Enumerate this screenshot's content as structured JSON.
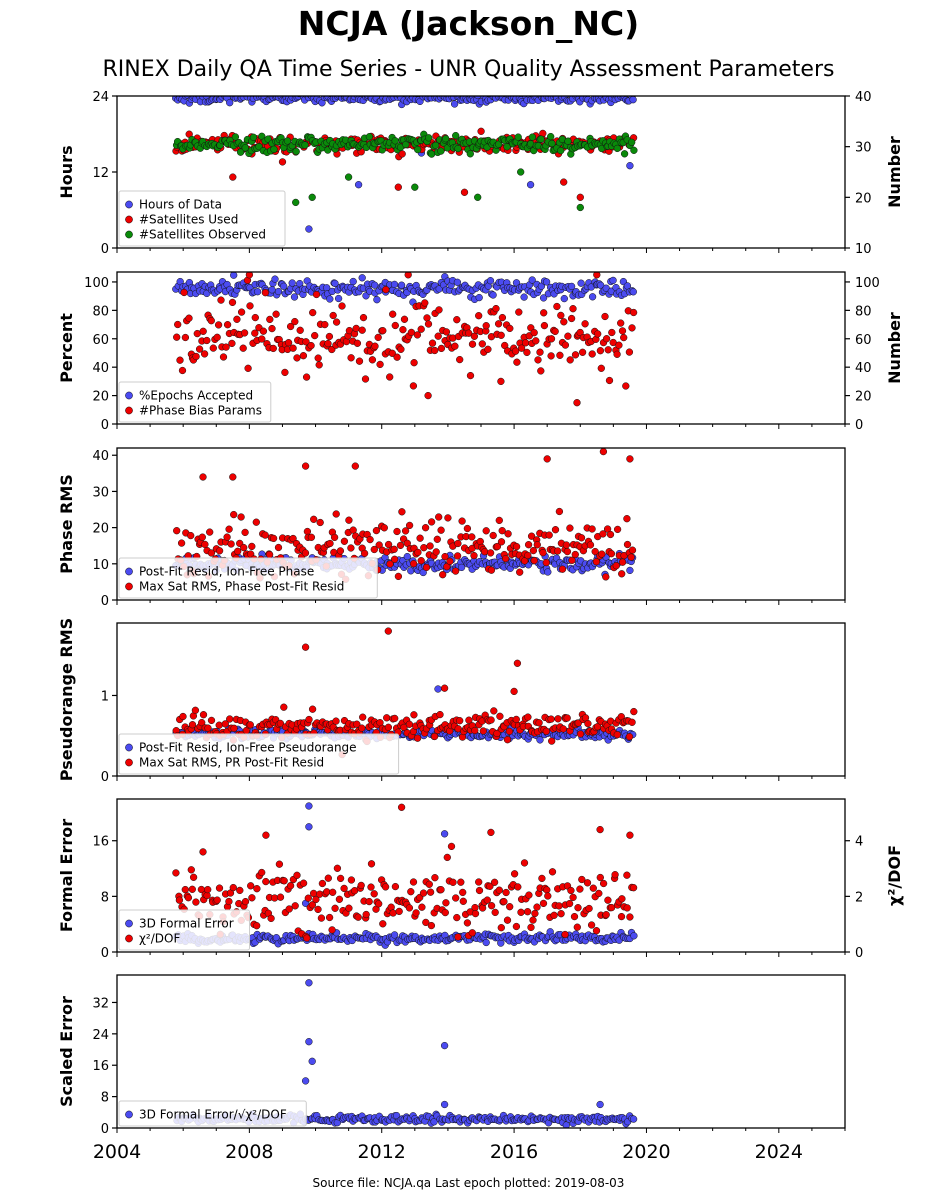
{
  "title": "NCJA (Jackson_NC)",
  "subtitle": "RINEX Daily QA Time Series - UNR Quality Assessment Parameters",
  "footer": "Source file: NCJA.qa Last epoch plotted: 2019-08-03",
  "colors": {
    "blue": "#4b4bf0",
    "red": "#ee0000",
    "green": "#0a8a0a",
    "dark": "#1a1a5a",
    "axis": "#000000"
  },
  "chart_data": [
    {
      "type": "scatter",
      "name": "panel1",
      "xlabel": "",
      "ylabel": "Hours",
      "ylabel_right": "Number",
      "xlim": [
        2004,
        2026
      ],
      "ylim": [
        0,
        24
      ],
      "ylim_right": [
        10,
        40
      ],
      "yticks": [
        0,
        12,
        24
      ],
      "yticks_right": [
        10,
        20,
        30,
        40
      ],
      "legend_loc": "lower-left",
      "series": [
        {
          "name": "Hours of Data",
          "color": "#4b4bf0",
          "axis": "left",
          "x_range": [
            2005.8,
            2019.6
          ],
          "baseline": 23.7,
          "spread": 0.4,
          "outliers": [
            [
              2009.8,
              3
            ],
            [
              2011.3,
              10
            ],
            [
              2013.2,
              15
            ],
            [
              2014.2,
              16
            ],
            [
              2016.5,
              10
            ],
            [
              2019.5,
              13
            ]
          ]
        },
        {
          "name": "#Satellites Used",
          "color": "#ee0000",
          "axis": "right",
          "x_range": [
            2005.8,
            2019.6
          ],
          "baseline": 30.5,
          "spread": 0.8,
          "outliers": [
            [
              2007.5,
              24
            ],
            [
              2009.0,
              27
            ],
            [
              2012.5,
              22
            ],
            [
              2014.5,
              21
            ],
            [
              2017.5,
              23
            ],
            [
              2018.0,
              20
            ]
          ]
        },
        {
          "name": "#Satellites Observed",
          "color": "#0a8a0a",
          "axis": "right",
          "x_range": [
            2005.8,
            2019.6
          ],
          "baseline": 30.5,
          "spread": 0.8,
          "outliers": [
            [
              2009.4,
              19
            ],
            [
              2009.9,
              20
            ],
            [
              2011.0,
              24
            ],
            [
              2013.0,
              22
            ],
            [
              2014.9,
              20
            ],
            [
              2016.2,
              25
            ],
            [
              2018.0,
              18
            ]
          ]
        }
      ]
    },
    {
      "type": "scatter",
      "name": "panel2",
      "xlabel": "",
      "ylabel": "Percent",
      "ylabel_right": "Number",
      "xlim": [
        2004,
        2026
      ],
      "ylim": [
        0,
        107
      ],
      "ylim_right": [
        0,
        107
      ],
      "yticks": [
        0,
        20,
        40,
        60,
        80,
        100
      ],
      "yticks_right": [
        0,
        20,
        40,
        60,
        80,
        100
      ],
      "legend_loc": "lower-left",
      "series": [
        {
          "name": "%Epochs Accepted",
          "color": "#4b4bf0",
          "axis": "left",
          "x_range": [
            2005.8,
            2019.6
          ],
          "baseline": 95,
          "spread": 3
        },
        {
          "name": "#Phase Bias Params",
          "color": "#ee0000",
          "axis": "right",
          "x_range": [
            2005.8,
            2019.6
          ],
          "baseline": 60,
          "spread": 12,
          "outliers": [
            [
              2008.0,
              105
            ],
            [
              2012.8,
              105
            ],
            [
              2013.4,
              20
            ],
            [
              2015.6,
              30
            ],
            [
              2017.9,
              15
            ],
            [
              2018.5,
              105
            ]
          ]
        }
      ]
    },
    {
      "type": "scatter",
      "name": "panel3",
      "xlabel": "",
      "ylabel": "Phase RMS",
      "xlim": [
        2004,
        2026
      ],
      "ylim": [
        0,
        42
      ],
      "yticks": [
        0,
        10,
        20,
        30,
        40
      ],
      "legend_loc": "lower-left",
      "series": [
        {
          "name": "Post-Fit Resid, Ion-Free Phase",
          "color": "#4b4bf0",
          "axis": "left",
          "x_range": [
            2005.8,
            2019.6
          ],
          "baseline": 10,
          "spread": 1
        },
        {
          "name": "Max Sat RMS, Phase Post-Fit Resid",
          "color": "#ee0000",
          "axis": "left",
          "x_range": [
            2005.8,
            2019.6
          ],
          "baseline": 15,
          "spread": 4,
          "outliers": [
            [
              2006.6,
              34
            ],
            [
              2007.5,
              34
            ],
            [
              2009.7,
              37
            ],
            [
              2011.2,
              37
            ],
            [
              2017.0,
              39
            ],
            [
              2018.7,
              41
            ],
            [
              2019.5,
              39
            ]
          ]
        }
      ]
    },
    {
      "type": "scatter",
      "name": "panel4",
      "xlabel": "",
      "ylabel": "Pseudorange RMS",
      "xlim": [
        2004,
        2026
      ],
      "ylim": [
        0,
        1.9
      ],
      "yticks": [
        0,
        1
      ],
      "legend_loc": "lower-left",
      "series": [
        {
          "name": "Post-Fit Resid, Ion-Free Pseudorange",
          "color": "#4b4bf0",
          "axis": "left",
          "x_range": [
            2005.8,
            2019.6
          ],
          "baseline": 0.52,
          "spread": 0.03,
          "outliers": [
            [
              2013.7,
              1.08
            ]
          ]
        },
        {
          "name": "Max Sat RMS, PR Post-Fit Resid",
          "color": "#ee0000",
          "axis": "left",
          "x_range": [
            2005.8,
            2019.6
          ],
          "baseline": 0.62,
          "spread": 0.08,
          "outliers": [
            [
              2009.7,
              1.6
            ],
            [
              2012.2,
              1.8
            ],
            [
              2013.9,
              1.09
            ],
            [
              2016.1,
              1.4
            ],
            [
              2016.0,
              1.05
            ]
          ]
        }
      ]
    },
    {
      "type": "scatter",
      "name": "panel5",
      "xlabel": "",
      "ylabel": "Formal Error",
      "ylabel_right": "χ²/DOF",
      "xlim": [
        2004,
        2026
      ],
      "ylim": [
        0,
        22
      ],
      "ylim_right": [
        0,
        5.5
      ],
      "yticks": [
        0,
        8,
        16
      ],
      "yticks_right": [
        0,
        2,
        4
      ],
      "legend_loc": "lower-left",
      "series": [
        {
          "name": "3D Formal Error",
          "color": "#4b4bf0",
          "axis": "left",
          "x_range": [
            2005.8,
            2019.6
          ],
          "baseline": 2.0,
          "spread": 0.3,
          "outliers": [
            [
              2009.8,
              21
            ],
            [
              2009.8,
              18
            ],
            [
              2013.9,
              17
            ],
            [
              2009.7,
              7
            ]
          ]
        },
        {
          "name": "χ²/DOF",
          "color": "#ee0000",
          "axis": "right",
          "x_range": [
            2005.8,
            2019.6
          ],
          "baseline": 1.8,
          "spread": 0.6,
          "outliers": [
            [
              2006.6,
              3.6
            ],
            [
              2008.5,
              4.2
            ],
            [
              2012.6,
              5.2
            ],
            [
              2015.3,
              4.3
            ],
            [
              2018.6,
              4.4
            ],
            [
              2019.5,
              4.2
            ]
          ]
        }
      ]
    },
    {
      "type": "scatter",
      "name": "panel6",
      "xlabel": "",
      "ylabel": "Scaled Error",
      "xlim": [
        2004,
        2026
      ],
      "ylim": [
        0,
        39
      ],
      "yticks": [
        0,
        8,
        16,
        24,
        32
      ],
      "xticks": [
        2004,
        2008,
        2012,
        2016,
        2020,
        2024
      ],
      "legend_loc": "lower-left",
      "series": [
        {
          "name": "3D Formal Error/√χ²/DOF",
          "color": "#4b4bf0",
          "axis": "left",
          "x_range": [
            2005.8,
            2019.6
          ],
          "baseline": 2.2,
          "spread": 0.5,
          "outliers": [
            [
              2009.8,
              37
            ],
            [
              2009.8,
              22
            ],
            [
              2009.9,
              17
            ],
            [
              2009.7,
              12
            ],
            [
              2013.9,
              21
            ],
            [
              2013.9,
              6
            ],
            [
              2018.6,
              6
            ]
          ]
        }
      ]
    }
  ]
}
